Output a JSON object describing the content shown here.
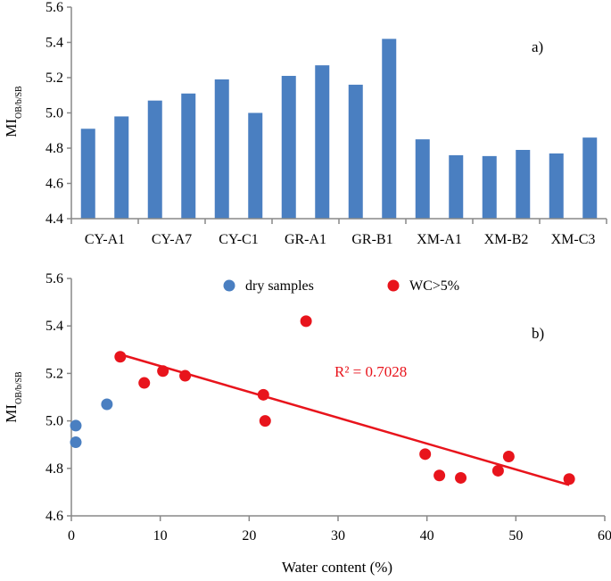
{
  "chart_data": [
    {
      "type": "bar",
      "panel_label": "a)",
      "ylabel": "MI",
      "ylabel_subscript": "OB/b/SB",
      "ylim": [
        4.4,
        5.6
      ],
      "yticks": [
        "4.4",
        "4.6",
        "4.8",
        "5.0",
        "5.2",
        "5.4",
        "5.6"
      ],
      "tick_labels": [
        "CY-A1",
        "CY-A7",
        "CY-C1",
        "GR-A1",
        "GR-B1",
        "XM-A1",
        "XM-B2",
        "XM-C3"
      ],
      "values": [
        4.91,
        4.98,
        5.07,
        5.11,
        5.19,
        5.0,
        5.21,
        5.27,
        5.16,
        5.42,
        4.85,
        4.76,
        4.755,
        4.79,
        4.77,
        4.86
      ],
      "bar_color": "#4a7fc1"
    },
    {
      "type": "scatter",
      "panel_label": "b)",
      "xlabel": "Water content (%)",
      "ylabel": "MI",
      "ylabel_subscript": "OB/b/SB",
      "xlim": [
        0,
        60
      ],
      "ylim": [
        4.6,
        5.6
      ],
      "xticks": [
        "0",
        "10",
        "20",
        "30",
        "40",
        "50",
        "60"
      ],
      "yticks": [
        "4.6",
        "4.8",
        "5.0",
        "5.2",
        "5.4",
        "5.6"
      ],
      "series": [
        {
          "name": "dry samples",
          "color": "#4a7fc1",
          "points": [
            [
              0.5,
              4.98
            ],
            [
              0.5,
              4.91
            ],
            [
              4.0,
              5.07
            ]
          ]
        },
        {
          "name": "WC>5%",
          "color": "#e8141c",
          "points": [
            [
              5.5,
              5.27
            ],
            [
              8.2,
              5.16
            ],
            [
              10.3,
              5.21
            ],
            [
              12.8,
              5.19
            ],
            [
              21.6,
              5.11
            ],
            [
              21.8,
              5.0
            ],
            [
              26.4,
              5.42
            ],
            [
              39.8,
              4.86
            ],
            [
              41.4,
              4.77
            ],
            [
              43.8,
              4.76
            ],
            [
              48.0,
              4.79
            ],
            [
              49.2,
              4.85
            ],
            [
              56.0,
              4.755
            ]
          ]
        }
      ],
      "trendline": {
        "x": [
          5.5,
          56.0
        ],
        "y": [
          5.28,
          4.73
        ],
        "color": "#e8141c",
        "r2_label": "R² = 0.7028"
      }
    }
  ]
}
